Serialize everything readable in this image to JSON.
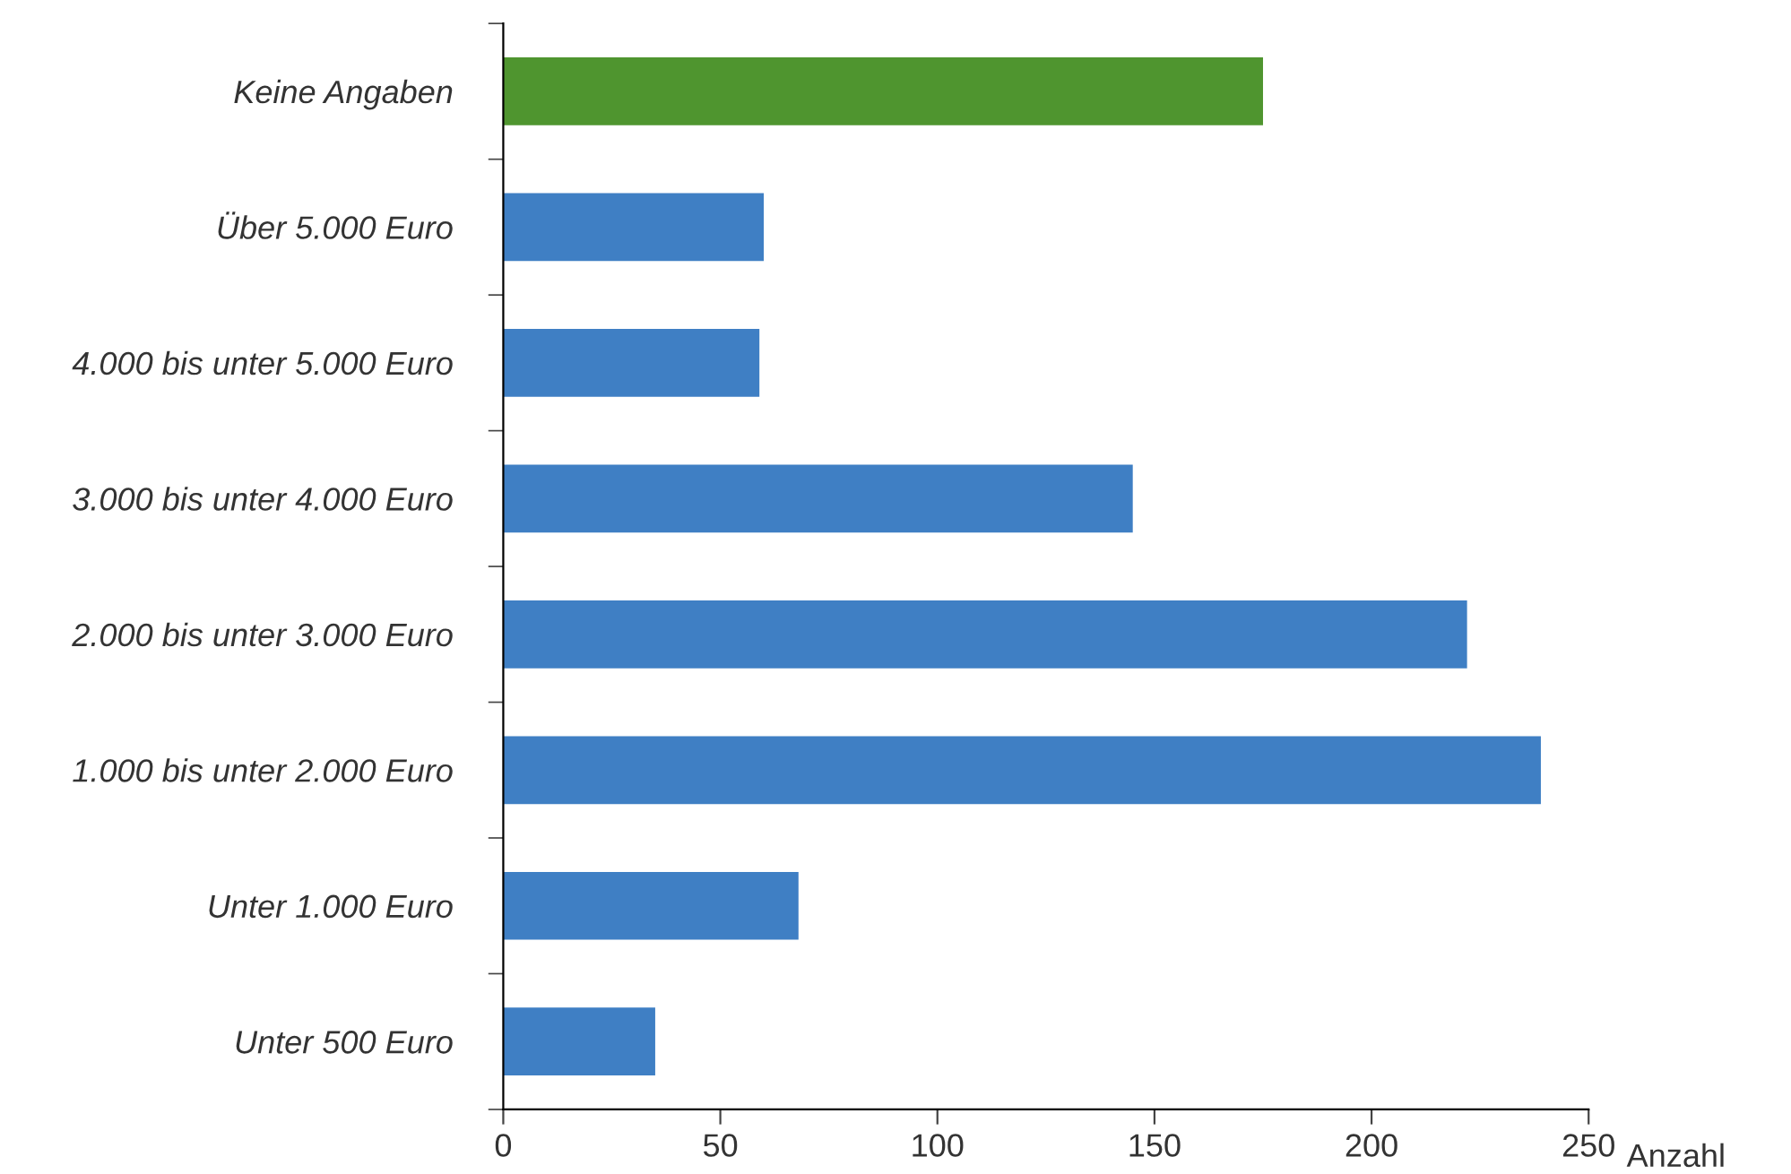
{
  "chart_data": {
    "type": "bar",
    "orientation": "horizontal",
    "xlabel": "Anzahl",
    "categories": [
      "Keine Angaben",
      "Über 5.000 Euro",
      "4.000 bis unter 5.000 Euro",
      "3.000 bis unter 4.000 Euro",
      "2.000 bis unter 3.000 Euro",
      "1.000 bis unter 2.000 Euro",
      "Unter 1.000 Euro",
      "Unter 500 Euro"
    ],
    "values": [
      175,
      60,
      59,
      145,
      222,
      239,
      68,
      35
    ],
    "colors": [
      "#4f952f",
      "#3f7fc4",
      "#3f7fc4",
      "#3f7fc4",
      "#3f7fc4",
      "#3f7fc4",
      "#3f7fc4",
      "#3f7fc4"
    ],
    "xlim": [
      0,
      250
    ],
    "xticks": [
      0,
      50,
      100,
      150,
      200,
      250
    ],
    "grid": false,
    "legend": false
  }
}
